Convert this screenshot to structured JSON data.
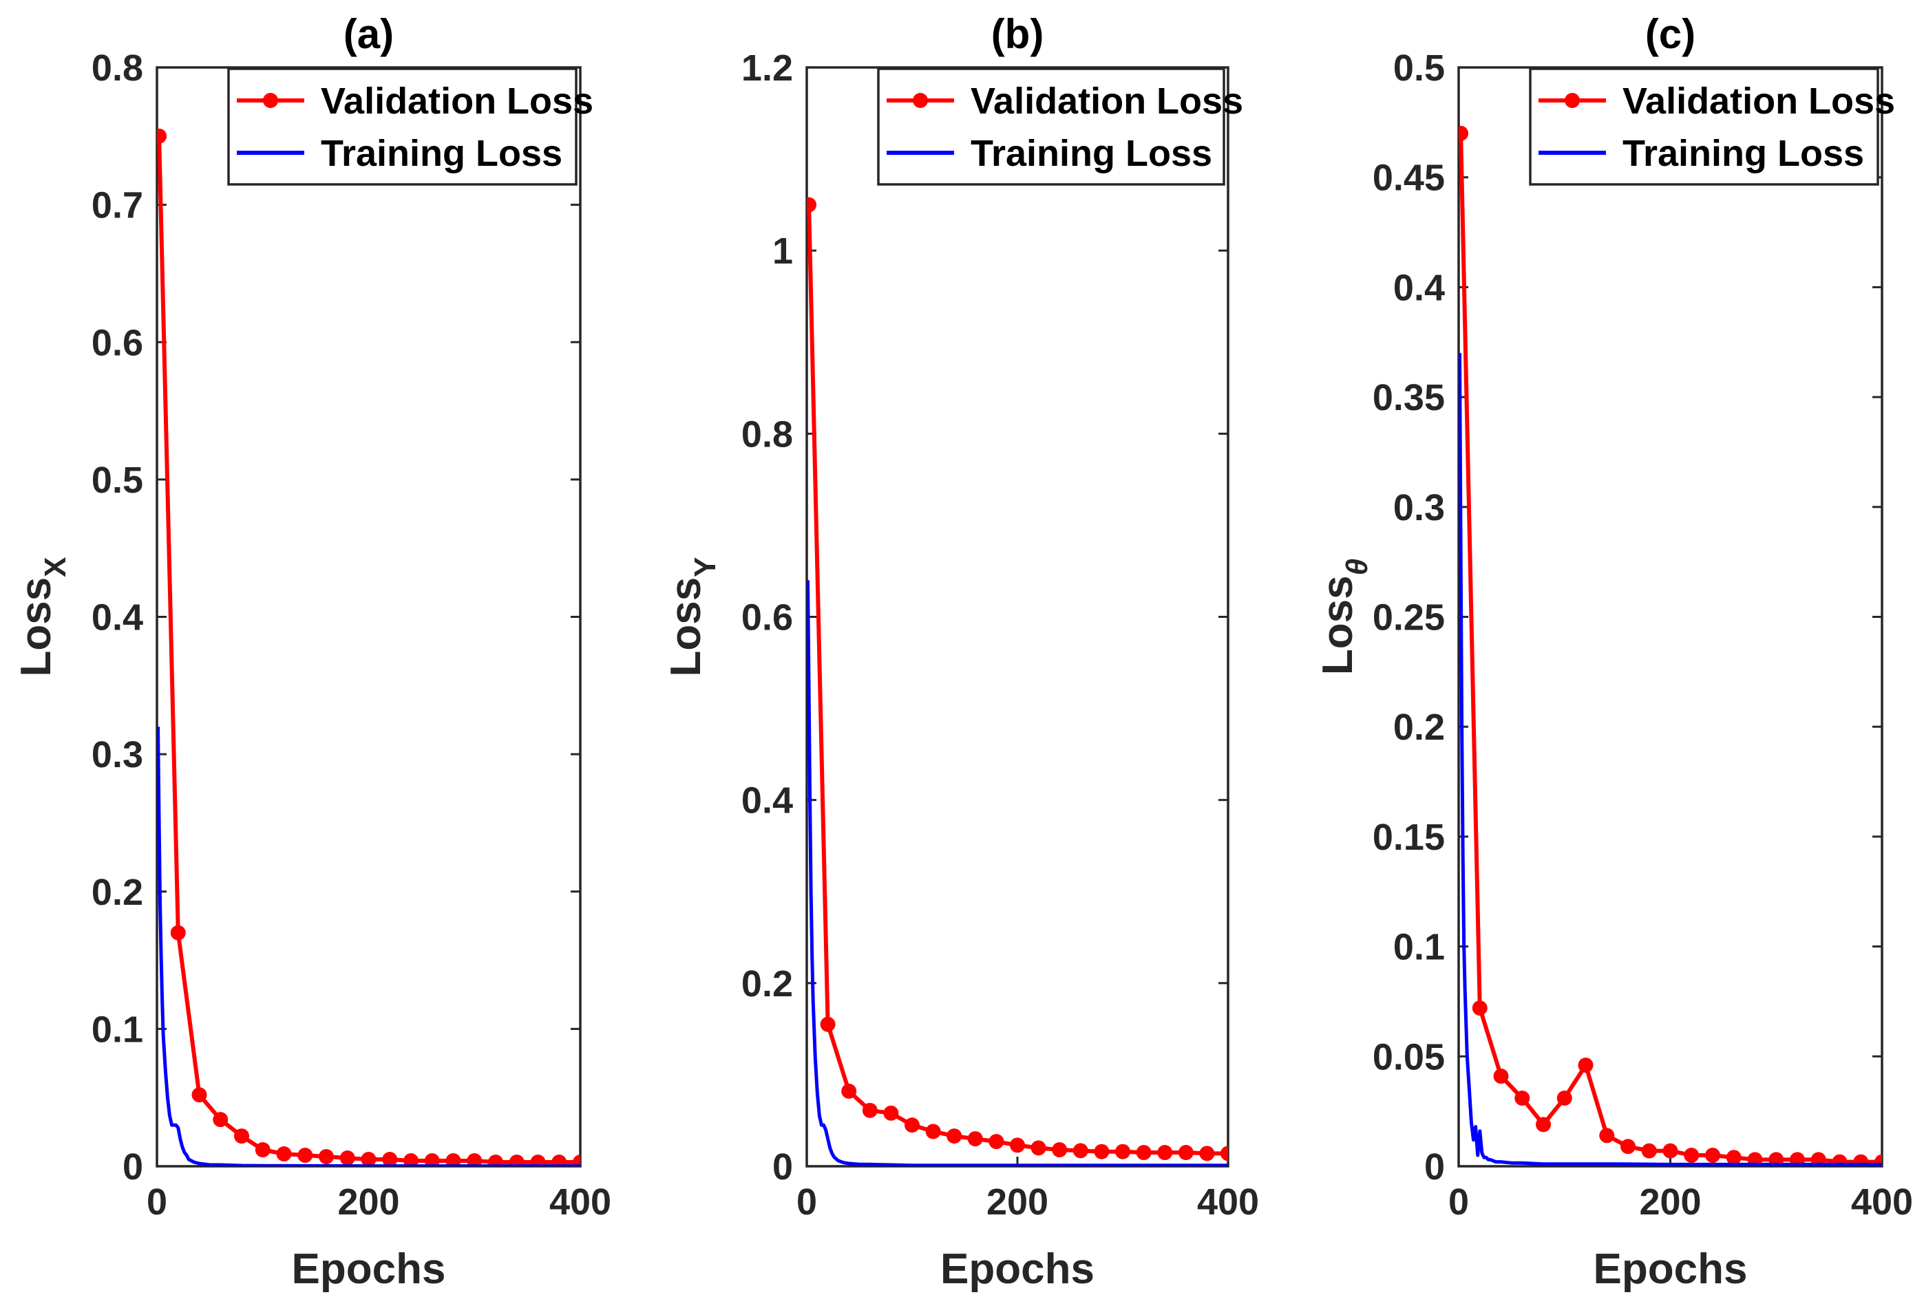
{
  "colors": {
    "validation": "#ff0000",
    "training": "#0000ff",
    "axis": "#262626"
  },
  "chart_data": [
    {
      "type": "line",
      "panel_label": "(a)",
      "title": "(a)",
      "xlabel": "Epochs",
      "ylabel": "Loss",
      "ylabel_subscript": "X",
      "xlim": [
        0,
        400
      ],
      "ylim": [
        0,
        0.8
      ],
      "xticks": [
        0,
        200,
        400
      ],
      "xtick_labels": [
        "0",
        "200",
        "400"
      ],
      "yticks": [
        0,
        0.1,
        0.2,
        0.3,
        0.4,
        0.5,
        0.6,
        0.7,
        0.8
      ],
      "ytick_labels": [
        "0",
        "0.1",
        "0.2",
        "0.3",
        "0.4",
        "0.5",
        "0.6",
        "0.7",
        "0.8"
      ],
      "legend": {
        "position": "top-right",
        "entries": [
          "Validation Loss",
          "Training Loss"
        ]
      },
      "series": [
        {
          "name": "Validation Loss",
          "marker": "circle",
          "x": [
            2,
            20,
            40,
            60,
            80,
            100,
            120,
            140,
            160,
            180,
            200,
            220,
            240,
            260,
            280,
            300,
            320,
            340,
            360,
            380,
            400
          ],
          "y": [
            0.75,
            0.17,
            0.052,
            0.034,
            0.022,
            0.012,
            0.009,
            0.008,
            0.007,
            0.006,
            0.005,
            0.005,
            0.004,
            0.004,
            0.004,
            0.004,
            0.003,
            0.003,
            0.003,
            0.003,
            0.003
          ]
        },
        {
          "name": "Training Loss",
          "marker": "none",
          "x": [
            1,
            2,
            3,
            4,
            5,
            6,
            8,
            10,
            12,
            14,
            16,
            18,
            20,
            22,
            24,
            26,
            28,
            30,
            35,
            40,
            50,
            60,
            80,
            100,
            150,
            200,
            300,
            400
          ],
          "y": [
            0.32,
            0.25,
            0.19,
            0.15,
            0.12,
            0.095,
            0.07,
            0.05,
            0.037,
            0.03,
            0.03,
            0.03,
            0.028,
            0.02,
            0.014,
            0.01,
            0.008,
            0.005,
            0.003,
            0.002,
            0.001,
            0.001,
            0.0005,
            0.0004,
            0.0003,
            0.0002,
            0.0002,
            0.0002
          ]
        }
      ]
    },
    {
      "type": "line",
      "panel_label": "(b)",
      "title": "(b)",
      "xlabel": "Epochs",
      "ylabel": "Loss",
      "ylabel_subscript": "Y",
      "xlim": [
        0,
        400
      ],
      "ylim": [
        0,
        1.2
      ],
      "xticks": [
        0,
        200,
        400
      ],
      "xtick_labels": [
        "0",
        "200",
        "400"
      ],
      "yticks": [
        0,
        0.2,
        0.4,
        0.6,
        0.8,
        1.0,
        1.2
      ],
      "ytick_labels": [
        "0",
        "0.2",
        "0.4",
        "0.6",
        "0.8",
        "1",
        "1.2"
      ],
      "legend": {
        "position": "top-right",
        "entries": [
          "Validation Loss",
          "Training Loss"
        ]
      },
      "series": [
        {
          "name": "Validation Loss",
          "marker": "circle",
          "x": [
            2,
            20,
            40,
            60,
            80,
            100,
            120,
            140,
            160,
            180,
            200,
            220,
            240,
            260,
            280,
            300,
            320,
            340,
            360,
            380,
            400
          ],
          "y": [
            1.05,
            0.155,
            0.082,
            0.061,
            0.058,
            0.045,
            0.038,
            0.033,
            0.03,
            0.027,
            0.023,
            0.02,
            0.018,
            0.017,
            0.016,
            0.016,
            0.015,
            0.015,
            0.015,
            0.014,
            0.014
          ]
        },
        {
          "name": "Training Loss",
          "marker": "none",
          "x": [
            1,
            2,
            3,
            4,
            5,
            6,
            8,
            10,
            12,
            14,
            16,
            18,
            20,
            22,
            24,
            26,
            28,
            30,
            35,
            40,
            50,
            60,
            80,
            100,
            150,
            200,
            300,
            400
          ],
          "y": [
            0.64,
            0.52,
            0.4,
            0.3,
            0.23,
            0.18,
            0.12,
            0.08,
            0.055,
            0.045,
            0.045,
            0.04,
            0.03,
            0.02,
            0.014,
            0.01,
            0.008,
            0.006,
            0.004,
            0.003,
            0.002,
            0.002,
            0.0015,
            0.001,
            0.001,
            0.001,
            0.001,
            0.001
          ]
        }
      ]
    },
    {
      "type": "line",
      "panel_label": "(c)",
      "title": "(c)",
      "xlabel": "Epochs",
      "ylabel": "Loss",
      "ylabel_subscript": "θ",
      "xlim": [
        0,
        400
      ],
      "ylim": [
        0,
        0.5
      ],
      "xticks": [
        0,
        200,
        400
      ],
      "xtick_labels": [
        "0",
        "200",
        "400"
      ],
      "yticks": [
        0,
        0.05,
        0.1,
        0.15,
        0.2,
        0.25,
        0.3,
        0.35,
        0.4,
        0.45,
        0.5
      ],
      "ytick_labels": [
        "0",
        "0.05",
        "0.1",
        "0.15",
        "0.2",
        "0.25",
        "0.3",
        "0.35",
        "0.4",
        "0.45",
        "0.5"
      ],
      "legend": {
        "position": "top-right",
        "entries": [
          "Validation Loss",
          "Training Loss"
        ]
      },
      "series": [
        {
          "name": "Validation Loss",
          "marker": "circle",
          "x": [
            2,
            20,
            40,
            60,
            80,
            100,
            120,
            140,
            160,
            180,
            200,
            220,
            240,
            260,
            280,
            300,
            320,
            340,
            360,
            380,
            400
          ],
          "y": [
            0.47,
            0.072,
            0.041,
            0.031,
            0.019,
            0.031,
            0.046,
            0.014,
            0.009,
            0.007,
            0.007,
            0.005,
            0.005,
            0.004,
            0.003,
            0.003,
            0.003,
            0.003,
            0.002,
            0.002,
            0.002
          ]
        },
        {
          "name": "Training Loss",
          "marker": "none",
          "x": [
            1,
            2,
            3,
            4,
            5,
            6,
            8,
            10,
            12,
            14,
            16,
            18,
            20,
            22,
            24,
            26,
            28,
            30,
            35,
            40,
            50,
            60,
            80,
            100,
            150,
            200,
            300,
            400
          ],
          "y": [
            0.37,
            0.28,
            0.2,
            0.14,
            0.1,
            0.08,
            0.05,
            0.035,
            0.02,
            0.012,
            0.018,
            0.005,
            0.016,
            0.006,
            0.004,
            0.004,
            0.003,
            0.003,
            0.002,
            0.002,
            0.0015,
            0.0015,
            0.001,
            0.001,
            0.001,
            0.0008,
            0.0008,
            0.0008
          ]
        }
      ]
    }
  ]
}
